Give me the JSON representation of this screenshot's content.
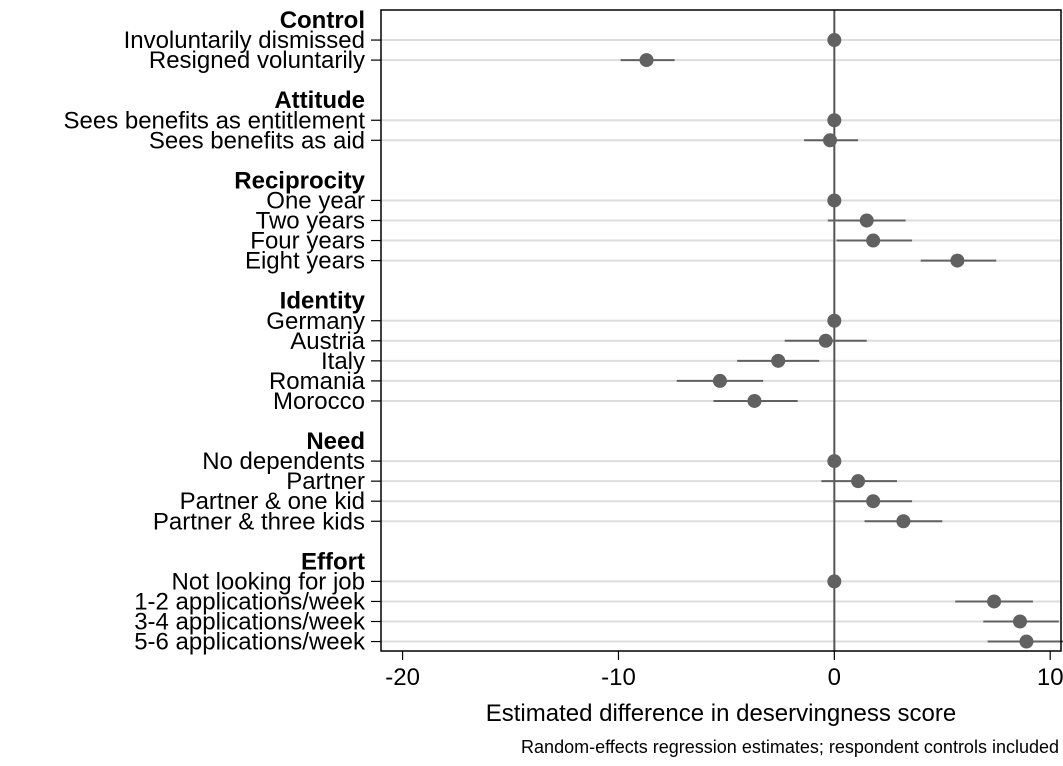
{
  "chart_data": {
    "type": "scatter",
    "xlabel": "Estimated difference in deservingness score",
    "note": "Random-effects regression estimates; respondent controls included",
    "xlim": [
      -21,
      10.5
    ],
    "xticks": [
      -20,
      -10,
      0,
      10
    ],
    "xtick_labels": [
      "-20",
      "-10",
      "0",
      "10"
    ],
    "reference_line_x": 0,
    "grid": "horizontal",
    "colors": {
      "point": "#616161",
      "ci": "#616161",
      "grid": "#dddddd",
      "refline": "#555555"
    },
    "rows": [
      {
        "kind": "group",
        "label": "Control"
      },
      {
        "kind": "item",
        "label": "Involuntarily dismissed",
        "estimate": 0,
        "ci_low": 0,
        "ci_high": 0
      },
      {
        "kind": "item",
        "label": "Resigned voluntarily",
        "estimate": -8.7,
        "ci_low": -9.9,
        "ci_high": -7.4
      },
      {
        "kind": "gap"
      },
      {
        "kind": "group",
        "label": "Attitude"
      },
      {
        "kind": "item",
        "label": "Sees benefits as entitlement",
        "estimate": 0,
        "ci_low": 0,
        "ci_high": 0
      },
      {
        "kind": "item",
        "label": "Sees benefits as aid",
        "estimate": -0.2,
        "ci_low": -1.4,
        "ci_high": 1.1
      },
      {
        "kind": "gap"
      },
      {
        "kind": "group",
        "label": "Reciprocity"
      },
      {
        "kind": "item",
        "label": "One year",
        "estimate": 0,
        "ci_low": 0,
        "ci_high": 0
      },
      {
        "kind": "item",
        "label": "Two years",
        "estimate": 1.5,
        "ci_low": -0.3,
        "ci_high": 3.3
      },
      {
        "kind": "item",
        "label": "Four years",
        "estimate": 1.8,
        "ci_low": 0.1,
        "ci_high": 3.6
      },
      {
        "kind": "item",
        "label": "Eight years",
        "estimate": 5.7,
        "ci_low": 4.0,
        "ci_high": 7.5
      },
      {
        "kind": "gap"
      },
      {
        "kind": "group",
        "label": "Identity"
      },
      {
        "kind": "item",
        "label": "Germany",
        "estimate": 0,
        "ci_low": 0,
        "ci_high": 0
      },
      {
        "kind": "item",
        "label": "Austria",
        "estimate": -0.4,
        "ci_low": -2.3,
        "ci_high": 1.5
      },
      {
        "kind": "item",
        "label": "Italy",
        "estimate": -2.6,
        "ci_low": -4.5,
        "ci_high": -0.7
      },
      {
        "kind": "item",
        "label": "Romania",
        "estimate": -5.3,
        "ci_low": -7.3,
        "ci_high": -3.3
      },
      {
        "kind": "item",
        "label": "Morocco",
        "estimate": -3.7,
        "ci_low": -5.6,
        "ci_high": -1.7
      },
      {
        "kind": "gap"
      },
      {
        "kind": "group",
        "label": "Need"
      },
      {
        "kind": "item",
        "label": "No dependents",
        "estimate": 0,
        "ci_low": 0,
        "ci_high": 0
      },
      {
        "kind": "item",
        "label": "Partner",
        "estimate": 1.1,
        "ci_low": -0.6,
        "ci_high": 2.9
      },
      {
        "kind": "item",
        "label": "Partner & one kid",
        "estimate": 1.8,
        "ci_low": 0.0,
        "ci_high": 3.6
      },
      {
        "kind": "item",
        "label": "Partner & three kids",
        "estimate": 3.2,
        "ci_low": 1.4,
        "ci_high": 5.0
      },
      {
        "kind": "gap"
      },
      {
        "kind": "group",
        "label": "Effort"
      },
      {
        "kind": "item",
        "label": "Not looking for job",
        "estimate": 0,
        "ci_low": 0,
        "ci_high": 0
      },
      {
        "kind": "item",
        "label": "1-2 applications/week",
        "estimate": 7.4,
        "ci_low": 5.6,
        "ci_high": 9.2
      },
      {
        "kind": "item",
        "label": "3-4 applications/week",
        "estimate": 8.6,
        "ci_low": 6.9,
        "ci_high": 10.4
      },
      {
        "kind": "item",
        "label": "5-6 applications/week",
        "estimate": 8.9,
        "ci_low": 7.1,
        "ci_high": 10.6
      }
    ]
  }
}
